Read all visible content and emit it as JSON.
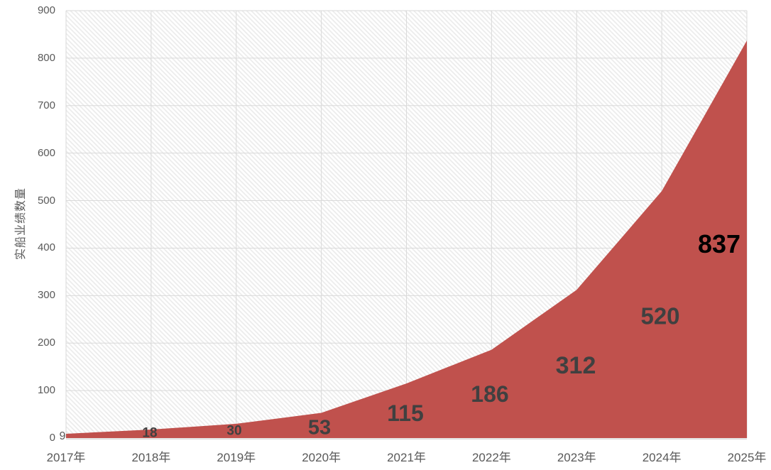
{
  "chart_data": {
    "type": "area",
    "categories": [
      "2017年",
      "2018年",
      "2019年",
      "2020年",
      "2021年",
      "2022年",
      "2023年",
      "2024年",
      "2025年"
    ],
    "series": [
      {
        "name": "实船业绩数量",
        "values": [
          9,
          18,
          30,
          53,
          115,
          186,
          312,
          520,
          837
        ]
      }
    ],
    "data_labels": [
      "9",
      "18",
      "30",
      "53",
      "115",
      "186",
      "312",
      "520",
      "837"
    ],
    "title": "",
    "xlabel": "",
    "ylabel": "实船业绩数量",
    "ylim": [
      0,
      900
    ],
    "yticks": [
      0,
      100,
      200,
      300,
      400,
      500,
      600,
      700,
      800,
      900
    ],
    "grid": "horizontal and vertical gridlines at every tick",
    "legend": "none",
    "plot_background": "white with light diagonal hatch pattern",
    "colors": {
      "area_fill": "#C0514D",
      "gridline": "#DADADA",
      "axis_line": "#DCDCDC",
      "axis_text": "#595959",
      "data_label": "#404040",
      "data_label_final": "#000000",
      "hatch_line": "#EBEBEB",
      "background": "#FFFFFF"
    }
  }
}
